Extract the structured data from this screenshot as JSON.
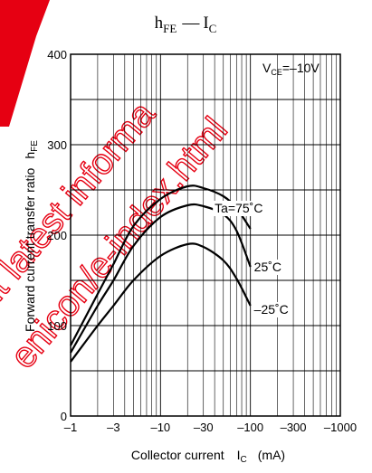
{
  "chart_data": {
    "type": "line",
    "title": {
      "main": "h",
      "main_sub": "FE",
      "dash": "—",
      "var": "I",
      "var_sub": "C"
    },
    "xlabel": {
      "text": "Collector current",
      "var": "I",
      "var_sub": "C",
      "unit": "(mA)"
    },
    "ylabel": {
      "text": "Forward current transfer ratio",
      "var": "h",
      "var_sub": "FE"
    },
    "x_scale": "log",
    "xlim": [
      -1,
      -1000
    ],
    "ylim": [
      0,
      400
    ],
    "x_ticks": [
      -1,
      -3,
      -10,
      -30,
      -100,
      -300,
      -1000
    ],
    "x_tick_labels": [
      "–1",
      "–3",
      "–10",
      "–30",
      "–100",
      "–300",
      "–1000"
    ],
    "y_ticks": [
      0,
      100,
      200,
      300,
      400
    ],
    "y_tick_labels": [
      "0",
      "100",
      "200",
      "300",
      "400"
    ],
    "condition": {
      "var": "V",
      "var_sub": "CE",
      "value": "=–10V"
    },
    "grid": true,
    "series": [
      {
        "name": "Ta=75˚C",
        "x": [
          -1,
          -2,
          -3,
          -5,
          -10,
          -20,
          -30,
          -50,
          -70,
          -100
        ],
        "y": [
          78,
          135,
          168,
          210,
          240,
          254,
          252,
          243,
          230,
          207
        ]
      },
      {
        "name": "25˚C",
        "x": [
          -1,
          -2,
          -3,
          -5,
          -10,
          -20,
          -30,
          -50,
          -70,
          -100
        ],
        "y": [
          70,
          122,
          150,
          188,
          220,
          233,
          232,
          223,
          205,
          165
        ]
      },
      {
        "name": "–25˚C",
        "x": [
          -1,
          -2,
          -3,
          -5,
          -10,
          -20,
          -30,
          -50,
          -70,
          -100
        ],
        "y": [
          60,
          100,
          122,
          150,
          177,
          190,
          187,
          172,
          152,
          122
        ]
      }
    ],
    "watermark": [
      "ut latest informa",
      "enicon/e-index.html"
    ]
  }
}
